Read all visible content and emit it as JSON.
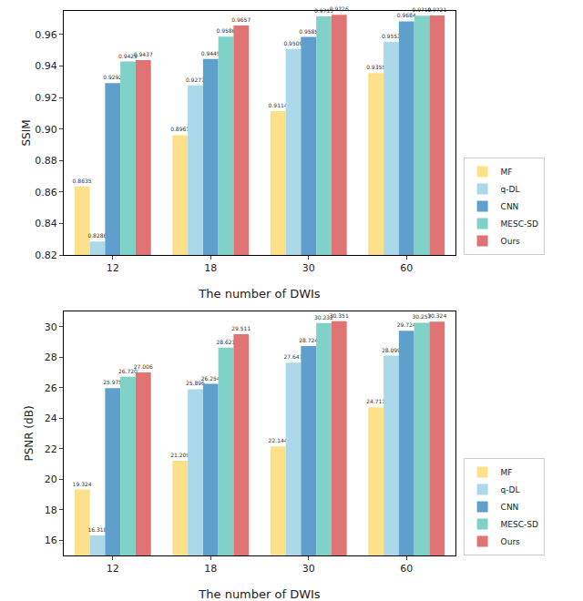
{
  "chart_data": [
    {
      "type": "bar",
      "x_label": "The number of DWIs",
      "y_label": "SSIM",
      "categories": [
        "12",
        "18",
        "30",
        "60"
      ],
      "series": [
        {
          "name": "MF",
          "color": "#fde08a",
          "values": [
            0.8635,
            0.8961,
            0.9114,
            0.9355
          ],
          "value_labels": [
            "0.8635",
            "0.8961",
            "0.9114",
            "0.9355"
          ]
        },
        {
          "name": "q-DL",
          "color": "#acd9ea",
          "values": [
            0.8286,
            0.9277,
            0.9509,
            0.9553
          ],
          "value_labels": [
            "0.8286",
            "0.9277",
            "0.9509",
            "0.9553"
          ]
        },
        {
          "name": "CNN",
          "color": "#5e9fcc",
          "values": [
            0.9292,
            0.9445,
            0.9585,
            0.9684
          ],
          "value_labels": [
            "0.9292",
            "0.9445",
            "0.9585",
            "0.9684"
          ]
        },
        {
          "name": "MESC-SD",
          "color": "#80d2c8",
          "values": [
            0.9429,
            0.9586,
            0.9715,
            0.9719
          ],
          "value_labels": [
            "0.9429",
            "0.9586",
            "0.9715",
            "0.9719"
          ]
        },
        {
          "name": "Ours",
          "color": "#e07373",
          "values": [
            0.9437,
            0.9657,
            0.9726,
            0.9721
          ],
          "value_labels": [
            "0.9437",
            "0.9657",
            "0.9726",
            "0.9721"
          ]
        }
      ],
      "ylim": [
        0.82,
        0.975
      ],
      "yticks": [
        {
          "value": 0.82,
          "label": "0.82"
        },
        {
          "value": 0.84,
          "label": "0.84"
        },
        {
          "value": 0.86,
          "label": "0.86"
        },
        {
          "value": 0.88,
          "label": "0.88"
        },
        {
          "value": 0.9,
          "label": "0.90"
        },
        {
          "value": 0.92,
          "label": "0.92"
        },
        {
          "value": 0.94,
          "label": "0.94"
        },
        {
          "value": 0.96,
          "label": "0.96"
        }
      ],
      "data_labels": true,
      "legend": "lower right",
      "grid": false
    },
    {
      "type": "bar",
      "x_label": "The number of DWIs",
      "y_label": "PSNR (dB)",
      "categories": [
        "12",
        "18",
        "30",
        "60"
      ],
      "series": [
        {
          "name": "MF",
          "color": "#fde08a",
          "values": [
            19.324,
            21.209,
            22.144,
            24.711
          ],
          "value_labels": [
            "19.324",
            "21.209",
            "22.144",
            "24.711"
          ]
        },
        {
          "name": "q-DL",
          "color": "#acd9ea",
          "values": [
            16.318,
            25.896,
            27.647,
            28.099
          ],
          "value_labels": [
            "16.318",
            "25.896",
            "27.647",
            "28.099"
          ]
        },
        {
          "name": "CNN",
          "color": "#5e9fcc",
          "values": [
            25.975,
            26.254,
            28.724,
            29.724
          ],
          "value_labels": [
            "25.975",
            "26.254",
            "28.724",
            "29.724"
          ]
        },
        {
          "name": "MESC-SD",
          "color": "#80d2c8",
          "values": [
            26.72,
            28.621,
            30.232,
            30.257
          ],
          "value_labels": [
            "26.720",
            "28.621",
            "30.232",
            "30.257"
          ]
        },
        {
          "name": "Ours",
          "color": "#e07373",
          "values": [
            27.006,
            29.511,
            30.351,
            30.324
          ],
          "value_labels": [
            "27.006",
            "29.511",
            "30.351",
            "30.324"
          ]
        }
      ],
      "ylim": [
        15,
        31
      ],
      "yticks": [
        16,
        18,
        20,
        22,
        24,
        26,
        28,
        30
      ],
      "data_labels": true,
      "legend": "lower right",
      "grid": false
    }
  ]
}
